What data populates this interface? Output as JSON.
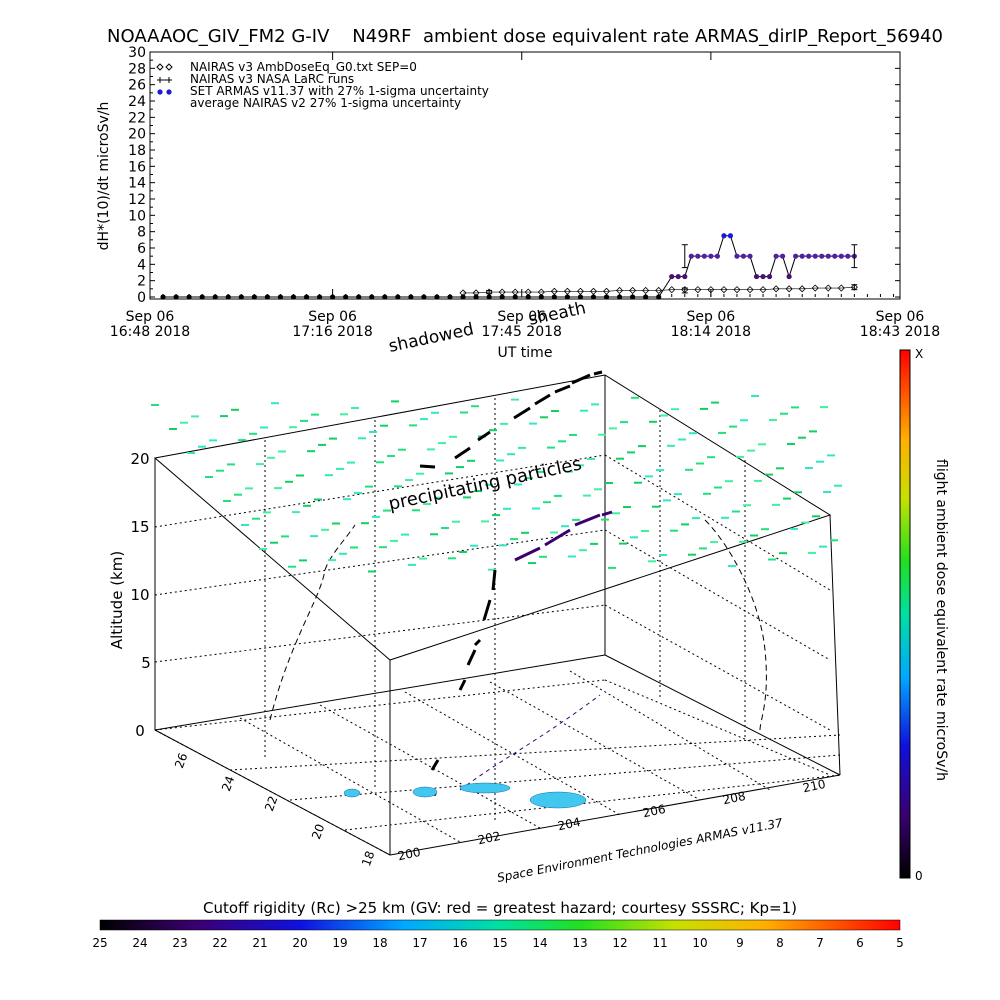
{
  "header": {
    "title": "NOAAAOC_GIV_FM2 G-IV    N49RF  ambient dose equivalent rate ARMAS_dirIP_Report_56940"
  },
  "chart_data": [
    {
      "type": "line",
      "ylabel": "dH*(10)/dt microSv/h",
      "xlabel": "UT time",
      "ylim": [
        0,
        30
      ],
      "yticks": [
        0,
        2,
        4,
        6,
        8,
        10,
        12,
        14,
        16,
        18,
        20,
        22,
        24,
        26,
        28,
        30
      ],
      "xlim": [
        0,
        115
      ],
      "xticks": [
        {
          "m": 0,
          "line1": "Sep 06",
          "line2": "16:48 2018"
        },
        {
          "m": 28,
          "line1": "Sep 06",
          "line2": "17:16 2018"
        },
        {
          "m": 57,
          "line1": "Sep 06",
          "line2": "17:45 2018"
        },
        {
          "m": 86,
          "line1": "Sep 06",
          "line2": "18:14 2018"
        },
        {
          "m": 115,
          "line1": "Sep 06",
          "line2": "18:43 2018"
        }
      ],
      "legend": [
        "NAIRAS v3 AmbDoseEq_G0.txt SEP=0",
        "NAIRAS v3 NASA LaRC runs",
        "SET ARMAS v11.37 with 27% 1-sigma uncertainty",
        "average NAIRAS v2 27% 1-sigma uncertainty"
      ],
      "legend_position": "top-left",
      "series": [
        {
          "name": "NAIRAS v3 AmbDoseEq_G0.txt SEP=0",
          "marker": "diamond",
          "x": [
            48,
            50,
            52,
            54,
            56,
            58,
            60,
            62,
            64,
            66,
            68,
            70,
            72,
            74,
            76,
            78,
            80,
            82,
            84,
            86,
            88,
            90,
            92,
            94,
            96,
            98,
            100,
            102,
            104,
            106,
            108
          ],
          "values": [
            0.5,
            0.5,
            0.6,
            0.6,
            0.6,
            0.6,
            0.6,
            0.7,
            0.7,
            0.7,
            0.7,
            0.7,
            0.8,
            0.8,
            0.8,
            0.8,
            0.9,
            0.9,
            0.9,
            0.9,
            0.9,
            0.9,
            0.9,
            0.9,
            1.0,
            1.0,
            1.0,
            1.1,
            1.1,
            1.1,
            1.2
          ]
        },
        {
          "name": "SET ARMAS v11.37 with 27% 1-sigma uncertainty",
          "marker": "dot",
          "x": [
            2,
            4,
            6,
            8,
            10,
            12,
            14,
            16,
            18,
            20,
            22,
            24,
            26,
            28,
            30,
            32,
            34,
            36,
            38,
            40,
            42,
            44,
            46,
            48,
            50,
            52,
            54,
            56,
            58,
            60,
            62,
            64,
            66,
            68,
            70,
            72,
            74,
            76,
            78,
            80,
            81,
            82,
            83,
            84,
            85,
            86,
            87,
            88,
            89,
            90,
            91,
            92,
            93,
            94,
            95,
            96,
            97,
            98,
            99,
            100,
            101,
            102,
            103,
            104,
            105,
            106,
            107,
            108
          ],
          "values": [
            0,
            0,
            0,
            0,
            0,
            0,
            0,
            0,
            0,
            0,
            0,
            0,
            0,
            0,
            0,
            0,
            0,
            0,
            0,
            0,
            0,
            0,
            0,
            0,
            0,
            0,
            0,
            0,
            0,
            0,
            0,
            0,
            0,
            0,
            0,
            0,
            0,
            0,
            0,
            2.5,
            2.5,
            2.5,
            5,
            5,
            5,
            5,
            5,
            7.5,
            7.5,
            5,
            5,
            5,
            2.5,
            2.5,
            2.5,
            5,
            5,
            2.5,
            5,
            5,
            5,
            5,
            5,
            5,
            5,
            5,
            5,
            5
          ]
        }
      ],
      "error_bars": [
        {
          "x": 52,
          "y": 0.6,
          "err": 0.2
        },
        {
          "x": 82,
          "y": 5,
          "err": 1.4
        },
        {
          "x": 108,
          "y": 5,
          "err": 1.4
        },
        {
          "x": 82,
          "y": 0.8,
          "err": 0.3
        },
        {
          "x": 108,
          "y": 1.2,
          "err": 0.3
        }
      ]
    },
    {
      "type": "scatter",
      "title": "",
      "zlabel": "Altitude (km)",
      "zticks": [
        "0",
        "5",
        "10",
        "15",
        "20"
      ],
      "lat_ticks": [
        "18",
        "20",
        "22",
        "24",
        "26"
      ],
      "lon_ticks": [
        "200",
        "202",
        "204",
        "206",
        "208",
        "210"
      ],
      "annotations": [
        "shadowed",
        "sheath",
        "precipitating particles"
      ],
      "credit": "Space Environment Technologies ARMAS v11.37",
      "colorbar_label": "flight ambient dose equivalent rate microSv/h",
      "colorbar_ends": {
        "max": "X",
        "min": "0"
      }
    }
  ],
  "rigidity_bar": {
    "label": "Cutoff rigidity (Rc) >25 km (GV: red = greatest hazard; courtesy SSSRC; Kp=1)",
    "ticks": [
      "25",
      "24",
      "23",
      "22",
      "21",
      "20",
      "19",
      "18",
      "17",
      "16",
      "15",
      "14",
      "13",
      "12",
      "11",
      "10",
      "9",
      "8",
      "7",
      "6",
      "5"
    ]
  }
}
